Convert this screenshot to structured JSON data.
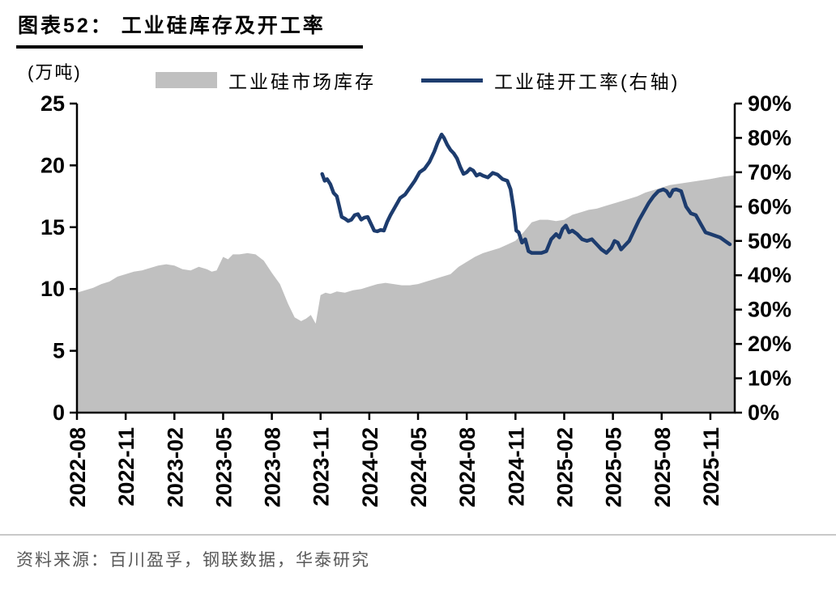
{
  "page": {
    "title": "图表52： 工业硅库存及开工率",
    "source": "资料来源：百川盈孚，钢联数据，华泰研究"
  },
  "chart_data": {
    "type": "area+line combo",
    "title": "工业硅库存及开工率",
    "unit_label": "(万吨)",
    "legend_position": "top",
    "grid": false,
    "legend": [
      {
        "label": "工业硅市场库存",
        "type": "area",
        "color": "#c0c0c0"
      },
      {
        "label": "工业硅开工率(右轴)",
        "type": "line",
        "color": "#1d3c6e"
      }
    ],
    "x_domain": [
      0,
      40.5
    ],
    "x_ticks": [
      {
        "v": 0,
        "label": "2022-08"
      },
      {
        "v": 3,
        "label": "2022-11"
      },
      {
        "v": 6,
        "label": "2023-02"
      },
      {
        "v": 9,
        "label": "2023-05"
      },
      {
        "v": 12,
        "label": "2023-08"
      },
      {
        "v": 15,
        "label": "2023-11"
      },
      {
        "v": 18,
        "label": "2024-02"
      },
      {
        "v": 21,
        "label": "2024-05"
      },
      {
        "v": 24,
        "label": "2024-08"
      },
      {
        "v": 27,
        "label": "2024-11"
      },
      {
        "v": 30,
        "label": "2025-02"
      },
      {
        "v": 33,
        "label": "2025-05"
      },
      {
        "v": 36,
        "label": "2025-08"
      },
      {
        "v": 39,
        "label": "2025-11"
      }
    ],
    "left_axis": {
      "range": [
        0,
        25
      ],
      "ticks": [
        {
          "v": 0,
          "label": "0"
        },
        {
          "v": 5,
          "label": "5"
        },
        {
          "v": 10,
          "label": "10"
        },
        {
          "v": 15,
          "label": "15"
        },
        {
          "v": 20,
          "label": "20"
        },
        {
          "v": 25,
          "label": "25"
        }
      ]
    },
    "right_axis": {
      "range": [
        0,
        90
      ],
      "ticks": [
        {
          "v": 0,
          "label": "0%"
        },
        {
          "v": 10,
          "label": "10%"
        },
        {
          "v": 20,
          "label": "20%"
        },
        {
          "v": 30,
          "label": "30%"
        },
        {
          "v": 40,
          "label": "40%"
        },
        {
          "v": 50,
          "label": "50%"
        },
        {
          "v": 60,
          "label": "60%"
        },
        {
          "v": 70,
          "label": "70%"
        },
        {
          "v": 80,
          "label": "80%"
        },
        {
          "v": 90,
          "label": "90%"
        }
      ]
    },
    "series": [
      {
        "name": "工业硅市场库存",
        "type": "area",
        "axis": "left",
        "color": "#c0c0c0",
        "points": [
          [
            0,
            9.7
          ],
          [
            0.5,
            9.9
          ],
          [
            1,
            10.1
          ],
          [
            1.5,
            10.4
          ],
          [
            2,
            10.6
          ],
          [
            2.5,
            11.0
          ],
          [
            3,
            11.2
          ],
          [
            3.5,
            11.4
          ],
          [
            4,
            11.5
          ],
          [
            4.5,
            11.7
          ],
          [
            5,
            11.9
          ],
          [
            5.5,
            12.0
          ],
          [
            6,
            11.9
          ],
          [
            6.5,
            11.6
          ],
          [
            7,
            11.5
          ],
          [
            7.5,
            11.8
          ],
          [
            8,
            11.6
          ],
          [
            8.3,
            11.4
          ],
          [
            8.6,
            11.5
          ],
          [
            9,
            12.6
          ],
          [
            9.3,
            12.4
          ],
          [
            9.6,
            12.8
          ],
          [
            10,
            12.8
          ],
          [
            10.5,
            12.9
          ],
          [
            11,
            12.8
          ],
          [
            11.5,
            12.3
          ],
          [
            12,
            11.3
          ],
          [
            12.5,
            10.4
          ],
          [
            13,
            8.8
          ],
          [
            13.4,
            7.7
          ],
          [
            13.8,
            7.4
          ],
          [
            14.1,
            7.6
          ],
          [
            14.4,
            7.9
          ],
          [
            14.7,
            7.2
          ],
          [
            15,
            9.5
          ],
          [
            15.3,
            9.7
          ],
          [
            15.6,
            9.6
          ],
          [
            16,
            9.8
          ],
          [
            16.5,
            9.7
          ],
          [
            17,
            9.9
          ],
          [
            17.5,
            10.0
          ],
          [
            18,
            10.2
          ],
          [
            18.5,
            10.4
          ],
          [
            19,
            10.5
          ],
          [
            19.5,
            10.4
          ],
          [
            20,
            10.3
          ],
          [
            20.5,
            10.3
          ],
          [
            21,
            10.4
          ],
          [
            21.5,
            10.6
          ],
          [
            22,
            10.8
          ],
          [
            22.5,
            11.0
          ],
          [
            23,
            11.2
          ],
          [
            23.5,
            11.8
          ],
          [
            24,
            12.2
          ],
          [
            24.5,
            12.6
          ],
          [
            25,
            12.9
          ],
          [
            25.5,
            13.1
          ],
          [
            26,
            13.3
          ],
          [
            26.5,
            13.6
          ],
          [
            27,
            13.9
          ],
          [
            27.5,
            14.6
          ],
          [
            28,
            15.4
          ],
          [
            28.5,
            15.6
          ],
          [
            29,
            15.6
          ],
          [
            29.5,
            15.5
          ],
          [
            30,
            15.6
          ],
          [
            30.5,
            16.0
          ],
          [
            31,
            16.2
          ],
          [
            31.5,
            16.4
          ],
          [
            32,
            16.5
          ],
          [
            32.5,
            16.7
          ],
          [
            33,
            16.9
          ],
          [
            33.5,
            17.1
          ],
          [
            34,
            17.3
          ],
          [
            34.5,
            17.5
          ],
          [
            35,
            17.8
          ],
          [
            35.5,
            18.0
          ],
          [
            36,
            18.2
          ],
          [
            36.5,
            18.4
          ],
          [
            37,
            18.5
          ],
          [
            37.5,
            18.6
          ],
          [
            38,
            18.7
          ],
          [
            38.5,
            18.8
          ],
          [
            39,
            18.9
          ],
          [
            39.8,
            19.1
          ],
          [
            40.5,
            19.2
          ]
        ]
      },
      {
        "name": "工业硅开工率(右轴)",
        "type": "line",
        "axis": "right",
        "color": "#1d3c6e",
        "points": [
          [
            15.1,
            69.5
          ],
          [
            15.25,
            67.5
          ],
          [
            15.4,
            68
          ],
          [
            15.6,
            66.5
          ],
          [
            15.8,
            64
          ],
          [
            16.0,
            63
          ],
          [
            16.15,
            60
          ],
          [
            16.3,
            57
          ],
          [
            16.5,
            56.5
          ],
          [
            16.7,
            55.8
          ],
          [
            16.9,
            56.2
          ],
          [
            17.1,
            57.5
          ],
          [
            17.3,
            57.8
          ],
          [
            17.5,
            56.2
          ],
          [
            17.7,
            56.8
          ],
          [
            17.9,
            57
          ],
          [
            18.1,
            55
          ],
          [
            18.3,
            53
          ],
          [
            18.5,
            52.8
          ],
          [
            18.7,
            53.2
          ],
          [
            18.9,
            53
          ],
          [
            19.1,
            55.5
          ],
          [
            19.3,
            57.5
          ],
          [
            19.6,
            60
          ],
          [
            19.9,
            62.5
          ],
          [
            20.2,
            63.5
          ],
          [
            20.5,
            65.5
          ],
          [
            20.8,
            67.5
          ],
          [
            21.1,
            70
          ],
          [
            21.4,
            71
          ],
          [
            21.7,
            73
          ],
          [
            22.0,
            76
          ],
          [
            22.2,
            78.5
          ],
          [
            22.45,
            81
          ],
          [
            22.6,
            80
          ],
          [
            22.8,
            78
          ],
          [
            23.0,
            76.5
          ],
          [
            23.2,
            75.5
          ],
          [
            23.4,
            74
          ],
          [
            23.6,
            71.5
          ],
          [
            23.8,
            69.5
          ],
          [
            24.0,
            70
          ],
          [
            24.2,
            71
          ],
          [
            24.4,
            70.5
          ],
          [
            24.6,
            69
          ],
          [
            24.8,
            69.5
          ],
          [
            25.0,
            69
          ],
          [
            25.3,
            68.5
          ],
          [
            25.6,
            69.8
          ],
          [
            25.9,
            69.3
          ],
          [
            26.2,
            68
          ],
          [
            26.5,
            67.5
          ],
          [
            26.7,
            65
          ],
          [
            26.9,
            59
          ],
          [
            27.05,
            53
          ],
          [
            27.2,
            52.5
          ],
          [
            27.4,
            49.5
          ],
          [
            27.6,
            50.5
          ],
          [
            27.8,
            47
          ],
          [
            28.0,
            46.5
          ],
          [
            28.3,
            46.5
          ],
          [
            28.6,
            46.5
          ],
          [
            28.9,
            47
          ],
          [
            29.2,
            50.5
          ],
          [
            29.5,
            52
          ],
          [
            29.7,
            51
          ],
          [
            29.9,
            53.5
          ],
          [
            30.1,
            54.5
          ],
          [
            30.3,
            52.5
          ],
          [
            30.5,
            53
          ],
          [
            30.8,
            52
          ],
          [
            31.1,
            50.5
          ],
          [
            31.4,
            50
          ],
          [
            31.7,
            50.5
          ],
          [
            32.0,
            49
          ],
          [
            32.3,
            47.5
          ],
          [
            32.6,
            46.5
          ],
          [
            32.9,
            48
          ],
          [
            33.1,
            50
          ],
          [
            33.3,
            49.5
          ],
          [
            33.5,
            47.5
          ],
          [
            33.7,
            48.5
          ],
          [
            34.0,
            50
          ],
          [
            34.3,
            53
          ],
          [
            34.6,
            56
          ],
          [
            34.9,
            58.5
          ],
          [
            35.2,
            61
          ],
          [
            35.5,
            63
          ],
          [
            35.8,
            64.5
          ],
          [
            36.1,
            65
          ],
          [
            36.3,
            64.5
          ],
          [
            36.5,
            63
          ],
          [
            36.7,
            64.8
          ],
          [
            36.9,
            65
          ],
          [
            37.2,
            64.5
          ],
          [
            37.5,
            60
          ],
          [
            37.8,
            58
          ],
          [
            38.1,
            57.5
          ],
          [
            38.4,
            55
          ],
          [
            38.7,
            52.5
          ],
          [
            39.0,
            52
          ],
          [
            39.3,
            51.5
          ],
          [
            39.6,
            51
          ],
          [
            39.9,
            50
          ],
          [
            40.2,
            49
          ]
        ]
      }
    ]
  }
}
